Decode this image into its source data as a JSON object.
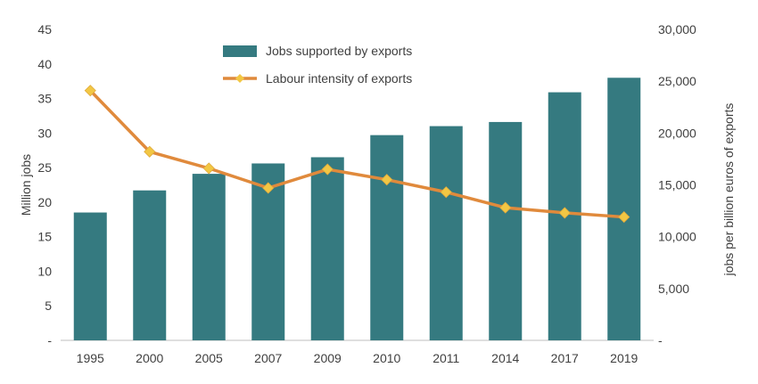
{
  "chart_data": {
    "type": "bar+line",
    "title": "",
    "categories": [
      "1995",
      "2000",
      "2005",
      "2007",
      "2009",
      "2010",
      "2011",
      "2014",
      "2017",
      "2019"
    ],
    "series": [
      {
        "name": "Jobs supported by exports",
        "type": "bar",
        "axis": "left",
        "color": "#357A80",
        "values": [
          18.5,
          21.7,
          24.1,
          25.6,
          26.5,
          29.7,
          31.0,
          31.6,
          35.9,
          38.0
        ]
      },
      {
        "name": "Labour intensity of exports",
        "type": "line",
        "axis": "right",
        "color": "#E08A3C",
        "marker_color": "#F2C744",
        "values": [
          24100,
          18200,
          16600,
          14700,
          16500,
          15500,
          14300,
          12800,
          12300,
          11900
        ]
      }
    ],
    "y_left": {
      "label": "Million jobs",
      "ylim": [
        0,
        45
      ],
      "ticks": [
        "-",
        "5",
        "10",
        "15",
        "20",
        "25",
        "30",
        "35",
        "40",
        "45"
      ]
    },
    "y_right": {
      "label": "jobs per billion euros of exports",
      "ylim": [
        0,
        30000
      ],
      "ticks": [
        "-",
        "5,000",
        "10,000",
        "15,000",
        "20,000",
        "25,000",
        "30,000"
      ]
    },
    "legend": {
      "placement": "top-center",
      "entries": [
        "Jobs supported by exports",
        "Labour intensity of exports"
      ]
    },
    "grid": false
  }
}
